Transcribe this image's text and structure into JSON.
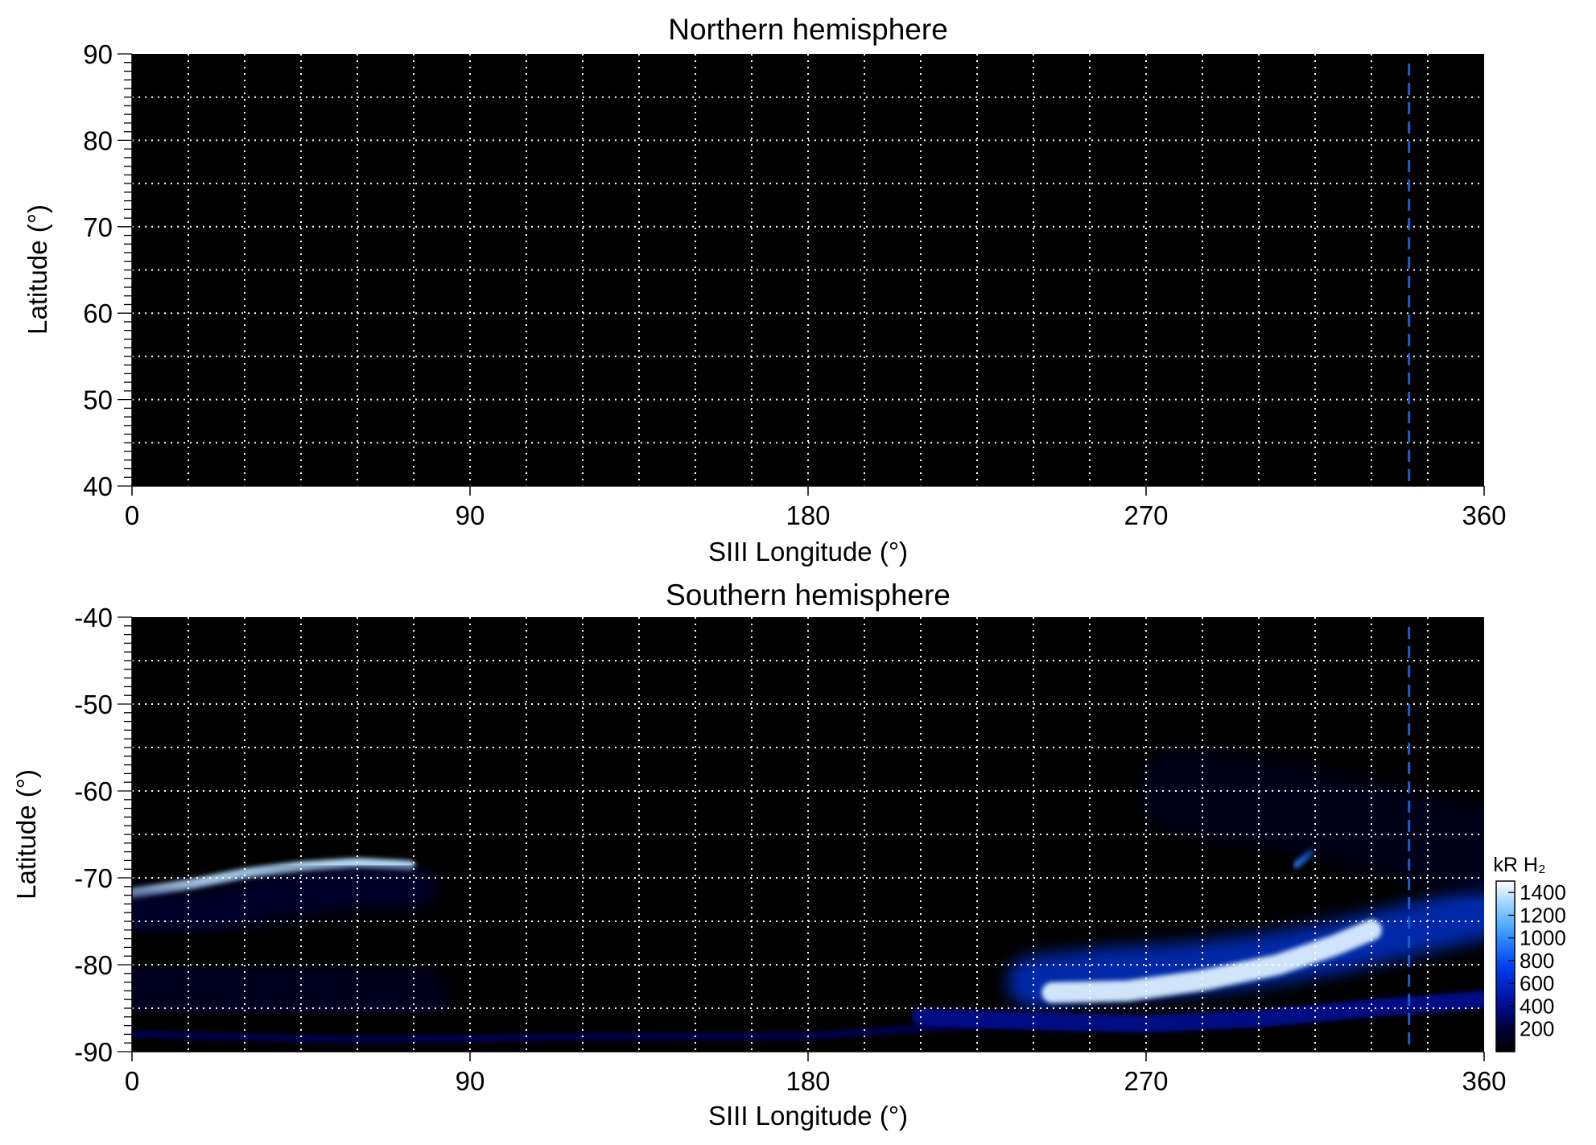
{
  "chart_data": [
    {
      "type": "heatmap",
      "title": "Northern hemisphere",
      "xlabel": "SIII Longitude (°)",
      "ylabel": "Latitude (°)",
      "xlim": [
        0,
        360
      ],
      "ylim": [
        40,
        90
      ],
      "x_ticks": [
        "0",
        "90",
        "180",
        "270",
        "360"
      ],
      "y_ticks": [
        "40",
        "50",
        "60",
        "70",
        "80",
        "90"
      ],
      "grid": true,
      "grid_x_step": 15,
      "grid_y_step": 5,
      "marker_longitude": 340,
      "marker_color": "#1a5fd0",
      "emission": []
    },
    {
      "type": "heatmap",
      "title": "Southern hemisphere",
      "xlabel": "SIII Longitude (°)",
      "ylabel": "Latitude (°)",
      "xlim": [
        0,
        360
      ],
      "ylim": [
        -90,
        -40
      ],
      "x_ticks": [
        "0",
        "90",
        "180",
        "270",
        "360"
      ],
      "y_ticks": [
        "-40",
        "-50",
        "-60",
        "-70",
        "-80",
        "-90"
      ],
      "grid": true,
      "grid_x_step": 15,
      "grid_y_step": 5,
      "marker_longitude": 340,
      "marker_color": "#1a5fd0",
      "emission": [
        {
          "name": "bright arc west",
          "points": [
            [
              0,
              -71.8
            ],
            [
              15,
              -70.8
            ],
            [
              30,
              -69.5
            ],
            [
              45,
              -68.7
            ],
            [
              60,
              -68.3
            ],
            [
              74,
              -68.6
            ]
          ],
          "intensity": 1300,
          "width_deg": 1.2
        },
        {
          "name": "diffuse region 0-75",
          "points": [
            [
              0,
              -74
            ],
            [
              20,
              -74
            ],
            [
              40,
              -72
            ],
            [
              60,
              -71
            ],
            [
              75,
              -71
            ]
          ],
          "intensity": 250,
          "width_deg": 5
        },
        {
          "name": "dim band 0-75 high lat",
          "points": [
            [
              0,
              -82
            ],
            [
              30,
              -83
            ],
            [
              60,
              -84
            ],
            [
              75,
              -84
            ]
          ],
          "intensity": 180,
          "width_deg": 8
        },
        {
          "name": "polar lower band",
          "points": [
            [
              0,
              -88
            ],
            [
              60,
              -88.6
            ],
            [
              120,
              -88.3
            ],
            [
              180,
              -88.2
            ],
            [
              210,
              -87.3
            ],
            [
              240,
              -86.5
            ]
          ],
          "intensity": 320,
          "width_deg": 0.8
        },
        {
          "name": "main oval east outer",
          "points": [
            [
              240,
              -82
            ],
            [
              260,
              -81
            ],
            [
              280,
              -80.5
            ],
            [
              300,
              -79.5
            ],
            [
              320,
              -78
            ],
            [
              335,
              -76.5
            ],
            [
              345,
              -75.5
            ],
            [
              360,
              -74
            ]
          ],
          "intensity": 700,
          "width_deg": 6
        },
        {
          "name": "main oval east core",
          "points": [
            [
              245,
              -83.2
            ],
            [
              265,
              -83.0
            ],
            [
              285,
              -81.8
            ],
            [
              305,
              -80
            ],
            [
              320,
              -77.8
            ],
            [
              330,
              -76
            ]
          ],
          "intensity": 1400,
          "width_deg": 2.4
        },
        {
          "name": "equatorward streaks",
          "points": [
            [
              210,
              -86
            ],
            [
              240,
              -86.5
            ],
            [
              270,
              -86.8
            ],
            [
              300,
              -86.2
            ],
            [
              330,
              -85
            ],
            [
              360,
              -84
            ]
          ],
          "intensity": 450,
          "width_deg": 2
        },
        {
          "name": "poleward feature",
          "points": [
            [
              310,
              -68.5
            ],
            [
              314,
              -67
            ]
          ],
          "intensity": 900,
          "width_deg": 0.8
        },
        {
          "name": "dim emission east",
          "points": [
            [
              280,
              -60
            ],
            [
              310,
              -62
            ],
            [
              340,
              -65
            ],
            [
              360,
              -67
            ]
          ],
          "intensity": 150,
          "width_deg": 10
        }
      ]
    }
  ],
  "colorbar": {
    "title": "kR H₂",
    "ticks": [
      "1400",
      "1200",
      "1000",
      "800",
      "600",
      "400",
      "200"
    ],
    "range": [
      0,
      1500
    ],
    "colors": [
      "#000000",
      "#00003a",
      "#0010a0",
      "#0040f0",
      "#3a9cff",
      "#a6d8ff",
      "#ffffff"
    ]
  }
}
